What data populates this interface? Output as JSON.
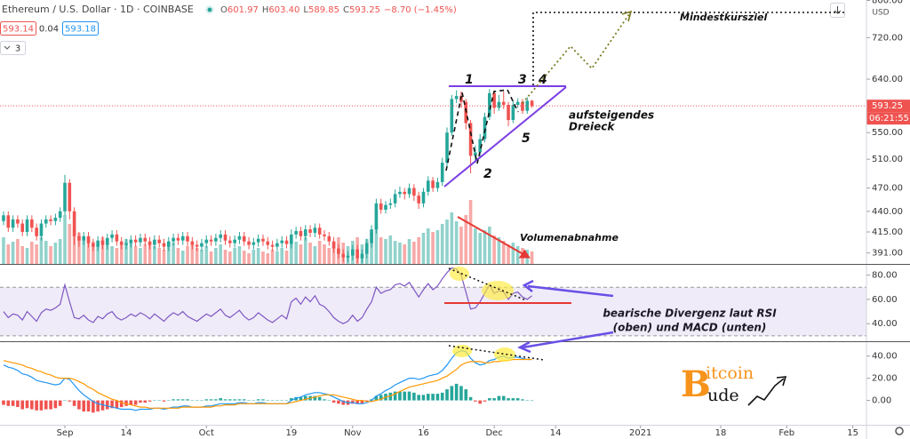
{
  "ui": {
    "symbol": "Ethereum / U.S. Dollar · 1D · COINBASE",
    "ohlc": [
      {
        "k": "O",
        "v": "601.97"
      },
      {
        "k": "H",
        "v": "603.40"
      },
      {
        "k": "L",
        "v": "589.85"
      },
      {
        "k": "C",
        "v": "593.25"
      }
    ],
    "change": "−8.70 (−1.45%)",
    "bid": "593.14",
    "spread": "0.04",
    "ask": "593.18",
    "indicators": "3",
    "currency": "USD",
    "countdown": "06:21:55",
    "logo": {
      "initial": "B",
      "top": "itcoin",
      "bottom": "ude"
    }
  },
  "chart_data": [
    {
      "type": "candlestick",
      "log_scale": true,
      "up_color": "#26a69a",
      "down_color": "#ef5350",
      "xlim": [
        -0.75,
        182.9
      ],
      "xticks": [
        {
          "value": 13,
          "label": "Sep"
        },
        {
          "value": 26,
          "label": "14"
        },
        {
          "value": 43,
          "label": "Oct"
        },
        {
          "value": 61,
          "label": "19"
        },
        {
          "value": 74,
          "label": "Nov"
        },
        {
          "value": 89,
          "label": "16"
        },
        {
          "value": 104,
          "label": "Dec"
        },
        {
          "value": 117,
          "label": "14"
        },
        {
          "value": 135,
          "label": "2021"
        },
        {
          "value": 152,
          "label": "18"
        },
        {
          "value": 166,
          "label": "Feb"
        },
        {
          "value": 180,
          "label": "15"
        }
      ],
      "ylim": [
        379,
        801
      ],
      "yticks": [
        {
          "value": 800,
          "label": "800.00"
        },
        {
          "value": 720,
          "label": "720.00"
        },
        {
          "value": 640,
          "label": "640.00"
        },
        {
          "value": 550,
          "label": "550.00"
        },
        {
          "value": 510,
          "label": "510.00"
        },
        {
          "value": 470,
          "label": "470.00"
        },
        {
          "value": 440,
          "label": "440.00"
        },
        {
          "value": 415,
          "label": "415.00"
        },
        {
          "value": 391,
          "label": "391.00"
        }
      ],
      "open": [
        428,
        435,
        420,
        430,
        425,
        415,
        430,
        420,
        410,
        425,
        430,
        428,
        432,
        440,
        477,
        440,
        410,
        405,
        410,
        402,
        398,
        405,
        400,
        408,
        412,
        404,
        400,
        402,
        406,
        403,
        408,
        404,
        400,
        406,
        402,
        398,
        404,
        408,
        405,
        410,
        404,
        400,
        398,
        402,
        406,
        404,
        408,
        412,
        405,
        402,
        406,
        410,
        404,
        400,
        403,
        407,
        404,
        400,
        398,
        402,
        405,
        401,
        412,
        416,
        410,
        418,
        414,
        420,
        412,
        410,
        404,
        396,
        390,
        386,
        388,
        395,
        385,
        390,
        402,
        418,
        450,
        442,
        448,
        450,
        462,
        465,
        462,
        470,
        460,
        450,
        465,
        480,
        470,
        478,
        505,
        550,
        605,
        610,
        600,
        565,
        515,
        520,
        540,
        575,
        615,
        590,
        600,
        595,
        570,
        595,
        600,
        585,
        601.97
      ],
      "high": [
        440,
        440,
        435,
        435,
        430,
        435,
        435,
        425,
        430,
        435,
        435,
        437,
        445,
        488,
        482,
        445,
        415,
        415,
        415,
        407,
        410,
        410,
        413,
        417,
        417,
        409,
        407,
        411,
        411,
        413,
        413,
        409,
        411,
        411,
        407,
        409,
        413,
        413,
        415,
        415,
        409,
        405,
        407,
        411,
        411,
        413,
        417,
        417,
        410,
        411,
        415,
        415,
        409,
        408,
        412,
        412,
        409,
        405,
        407,
        410,
        410,
        418,
        421,
        421,
        423,
        423,
        425,
        425,
        417,
        415,
        409,
        401,
        395,
        393,
        400,
        400,
        395,
        407,
        423,
        456,
        456,
        453,
        456,
        468,
        472,
        470,
        476,
        475,
        465,
        470,
        486,
        485,
        484,
        512,
        558,
        612,
        620,
        618,
        605,
        570,
        530,
        548,
        582,
        622,
        620,
        612,
        618,
        600,
        602,
        606,
        605,
        608,
        603.4
      ],
      "low": [
        423,
        415,
        415,
        420,
        410,
        410,
        415,
        405,
        405,
        420,
        423,
        423,
        427,
        435,
        430,
        400,
        398,
        400,
        397,
        393,
        393,
        395,
        395,
        403,
        399,
        395,
        395,
        397,
        398,
        398,
        399,
        395,
        395,
        397,
        393,
        393,
        399,
        400,
        400,
        399,
        395,
        393,
        393,
        397,
        399,
        399,
        403,
        400,
        397,
        397,
        401,
        399,
        395,
        395,
        398,
        399,
        395,
        393,
        393,
        397,
        396,
        396,
        407,
        405,
        405,
        409,
        409,
        407,
        405,
        399,
        391,
        385,
        381,
        381,
        383,
        380,
        380,
        385,
        397,
        413,
        437,
        437,
        443,
        445,
        457,
        455,
        457,
        453,
        443,
        445,
        460,
        465,
        465,
        473,
        500,
        545,
        598,
        590,
        555,
        490,
        505,
        512,
        535,
        570,
        580,
        585,
        588,
        560,
        565,
        590,
        580,
        580,
        589.85
      ],
      "close": [
        435,
        420,
        430,
        425,
        415,
        430,
        420,
        410,
        425,
        430,
        428,
        432,
        440,
        477,
        440,
        410,
        405,
        410,
        402,
        398,
        405,
        400,
        408,
        412,
        404,
        400,
        402,
        406,
        403,
        408,
        404,
        400,
        406,
        402,
        398,
        404,
        408,
        405,
        410,
        404,
        400,
        398,
        402,
        406,
        404,
        408,
        412,
        405,
        402,
        406,
        410,
        404,
        400,
        403,
        407,
        404,
        400,
        398,
        402,
        405,
        401,
        412,
        416,
        410,
        418,
        414,
        420,
        412,
        410,
        404,
        396,
        390,
        386,
        388,
        395,
        385,
        390,
        402,
        418,
        450,
        442,
        448,
        450,
        462,
        465,
        462,
        470,
        460,
        450,
        465,
        480,
        470,
        478,
        505,
        550,
        605,
        610,
        600,
        565,
        515,
        520,
        540,
        575,
        615,
        590,
        600,
        595,
        570,
        595,
        600,
        585,
        601.95,
        593.25
      ],
      "volume": [
        30,
        22,
        25,
        28,
        20,
        18,
        25,
        22,
        30,
        26,
        20,
        24,
        28,
        55,
        45,
        40,
        35,
        30,
        28,
        25,
        22,
        30,
        26,
        20,
        18,
        22,
        28,
        24,
        20,
        18,
        22,
        25,
        20,
        18,
        16,
        20,
        24,
        18,
        15,
        20,
        22,
        18,
        16,
        20,
        14,
        18,
        22,
        16,
        14,
        18,
        20,
        15,
        12,
        16,
        18,
        14,
        12,
        16,
        14,
        18,
        15,
        28,
        25,
        22,
        30,
        24,
        20,
        26,
        22,
        18,
        25,
        30,
        24,
        20,
        26,
        30,
        22,
        28,
        35,
        45,
        30,
        28,
        32,
        26,
        24,
        22,
        28,
        25,
        30,
        35,
        40,
        36,
        38,
        45,
        50,
        58,
        48,
        42,
        55,
        72,
        40,
        35,
        38,
        42,
        32,
        30,
        26,
        22,
        24,
        20,
        18,
        16,
        14
      ],
      "annotations": [
        "1",
        "2",
        "3",
        "4",
        "5",
        "aufsteigendes",
        "Dreieck",
        "Mindestkursziel",
        "Volumenabnahme",
        "bearische Divergenz laut RSI",
        "(oben) und MACD (unten)"
      ]
    },
    {
      "type": "line",
      "color": "#7e57c2",
      "band": [
        30,
        70
      ],
      "ylim": [
        27,
        87
      ],
      "yticks": [
        {
          "value": 80,
          "label": "80.00"
        },
        {
          "value": 60,
          "label": "60.00"
        },
        {
          "value": 40,
          "label": "40.00"
        }
      ],
      "values": [
        50,
        45,
        48,
        47,
        43,
        50,
        46,
        42,
        49,
        52,
        51,
        53,
        56,
        72,
        58,
        45,
        44,
        47,
        43,
        41,
        46,
        44,
        48,
        50,
        45,
        43,
        45,
        48,
        46,
        49,
        47,
        44,
        48,
        45,
        42,
        46,
        49,
        47,
        50,
        46,
        44,
        42,
        45,
        48,
        46,
        49,
        52,
        47,
        45,
        48,
        51,
        46,
        43,
        45,
        49,
        46,
        43,
        41,
        44,
        47,
        44,
        58,
        61,
        56,
        62,
        58,
        63,
        56,
        54,
        50,
        45,
        42,
        40,
        42,
        47,
        42,
        45,
        52,
        58,
        70,
        65,
        67,
        68,
        72,
        73,
        71,
        74,
        68,
        62,
        68,
        73,
        68,
        71,
        77,
        82,
        86,
        85,
        80,
        66,
        52,
        53,
        58,
        65,
        72,
        65,
        67,
        66,
        60,
        65,
        66,
        62,
        60,
        63
      ]
    },
    {
      "type": "line",
      "up_color": "#26a69a",
      "down_color": "#ef5350",
      "ylim": [
        -22,
        51
      ],
      "yticks": [
        {
          "value": 40,
          "label": "40.00"
        },
        {
          "value": 20,
          "label": "20.00"
        },
        {
          "value": 0,
          "label": "0.00"
        }
      ],
      "series": [
        {
          "color": "#2196f3",
          "values": [
            32,
            30,
            29,
            27,
            24,
            23,
            21,
            18,
            17,
            16,
            15,
            14,
            15,
            20,
            19,
            14,
            9,
            5,
            2,
            -1,
            -3,
            -4,
            -5,
            -6,
            -7,
            -8,
            -8,
            -8,
            -9,
            -8,
            -8,
            -8,
            -7,
            -7,
            -8,
            -7,
            -6,
            -6,
            -5,
            -5,
            -6,
            -6,
            -6,
            -5,
            -5,
            -4,
            -3,
            -3,
            -3,
            -3,
            -2,
            -2,
            -3,
            -3,
            -2,
            -2,
            -3,
            -3,
            -3,
            -3,
            -3,
            0,
            2,
            3,
            5,
            6,
            7,
            7,
            6,
            5,
            3,
            1,
            -1,
            -2,
            -2,
            -3,
            -3,
            -2,
            0,
            4,
            6,
            9,
            11,
            14,
            16,
            18,
            20,
            20,
            19,
            20,
            22,
            23,
            24,
            27,
            32,
            38,
            43,
            45,
            44,
            38,
            34,
            32,
            33,
            36,
            37,
            39,
            40,
            38,
            39,
            39,
            38,
            37,
            37
          ]
        },
        {
          "color": "#ff9800",
          "values": [
            36,
            35,
            34,
            33,
            32,
            30,
            29,
            27,
            26,
            24,
            23,
            21,
            20,
            20,
            20,
            19,
            17,
            15,
            12,
            10,
            7,
            5,
            3,
            1,
            0,
            -2,
            -3,
            -4,
            -5,
            -6,
            -6,
            -7,
            -7,
            -7,
            -7,
            -7,
            -7,
            -7,
            -6,
            -6,
            -6,
            -6,
            -6,
            -6,
            -6,
            -5,
            -5,
            -4,
            -4,
            -4,
            -3,
            -3,
            -3,
            -3,
            -3,
            -3,
            -3,
            -3,
            -3,
            -3,
            -3,
            -2,
            -1,
            0,
            1,
            2,
            3,
            4,
            5,
            5,
            5,
            4,
            3,
            2,
            1,
            0,
            0,
            -1,
            -1,
            0,
            1,
            3,
            4,
            6,
            8,
            10,
            12,
            13,
            14,
            15,
            16,
            17,
            18,
            20,
            22,
            25,
            28,
            32,
            34,
            35,
            35,
            35,
            34,
            34,
            35,
            35,
            36,
            36,
            37,
            37,
            37,
            37,
            37
          ]
        }
      ],
      "histogram": [
        -4,
        -5,
        -5,
        -6,
        -8,
        -7,
        -8,
        -9,
        -9,
        -8,
        -8,
        -7,
        -5,
        0,
        -1,
        -5,
        -8,
        -10,
        -10,
        -11,
        -10,
        -9,
        -8,
        -7,
        -7,
        -6,
        -5,
        -4,
        -4,
        -2,
        -2,
        -1,
        0,
        0,
        -1,
        0,
        1,
        1,
        1,
        1,
        0,
        0,
        0,
        1,
        1,
        1,
        2,
        1,
        1,
        1,
        1,
        1,
        0,
        0,
        1,
        1,
        0,
        0,
        0,
        0,
        0,
        2,
        3,
        3,
        4,
        4,
        4,
        3,
        1,
        0,
        -2,
        -3,
        -4,
        -4,
        -3,
        -3,
        -3,
        -1,
        1,
        4,
        5,
        6,
        7,
        8,
        8,
        8,
        8,
        7,
        5,
        5,
        6,
        6,
        6,
        7,
        10,
        13,
        15,
        13,
        10,
        3,
        -1,
        -3,
        -1,
        2,
        2,
        4,
        4,
        2,
        2,
        2,
        1,
        0,
        0
      ]
    }
  ]
}
